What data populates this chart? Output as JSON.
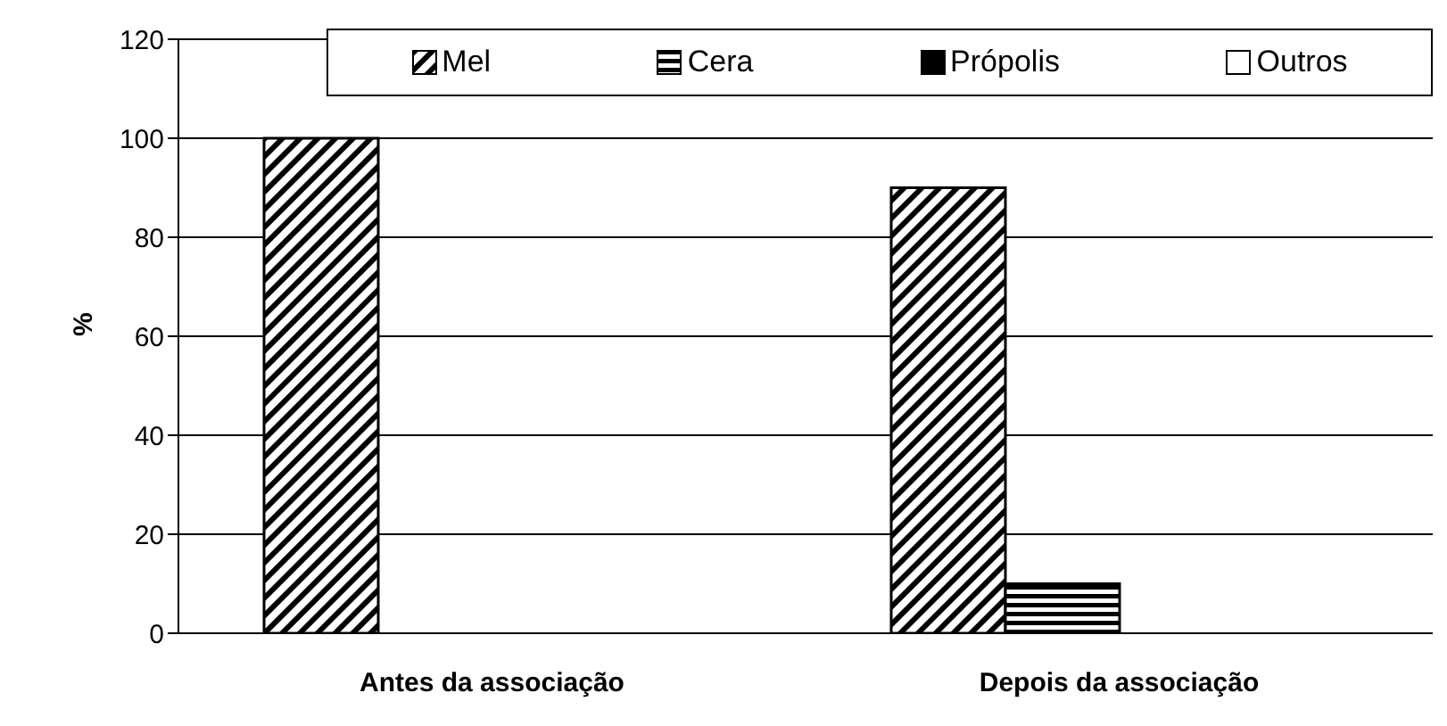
{
  "chart_data": {
    "type": "bar",
    "ylabel": "%",
    "categories": [
      "Antes da associação",
      "Depois da associação"
    ],
    "series": [
      {
        "name": "Mel",
        "color": "#000000",
        "values": [
          100,
          90
        ]
      },
      {
        "name": "Cera",
        "color": "#000000",
        "values": [
          0,
          10
        ]
      },
      {
        "name": "Própolis",
        "color": "#000000",
        "values": [
          0,
          0
        ]
      },
      {
        "name": "Outros",
        "color": "#ffffff",
        "values": [
          0,
          0
        ]
      }
    ],
    "ylim": [
      0,
      120
    ],
    "yticks": [
      0,
      20,
      40,
      60,
      80,
      100,
      120
    ],
    "grid": "y",
    "legend": "top right"
  }
}
